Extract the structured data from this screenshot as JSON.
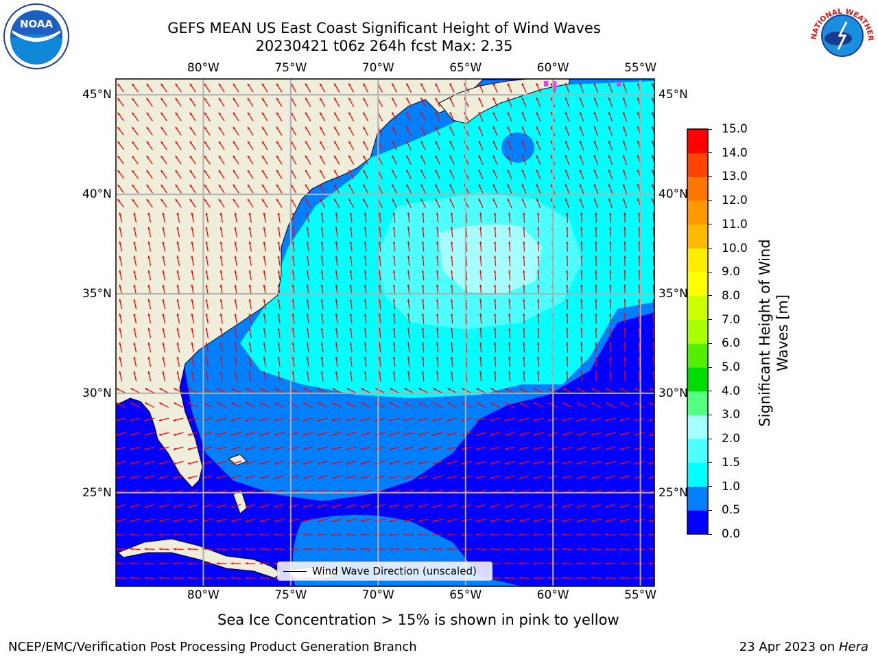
{
  "header": {
    "title_line1": "GEFS MEAN US East Coast Significant Height of Wind Waves",
    "title_line2": "20230421 t06z 264h fcst   Max: 2.35"
  },
  "logos": {
    "left": {
      "icon": "noaa-logo-icon",
      "text": "NOAA"
    },
    "right": {
      "icon": "nws-logo-icon",
      "text": "NATIONAL WEATHER SERVICE"
    }
  },
  "map": {
    "lon_labels": [
      "80°W",
      "75°W",
      "70°W",
      "65°W",
      "60°W",
      "55°W"
    ],
    "lon_values": [
      -80,
      -75,
      -70,
      -65,
      -60,
      -55
    ],
    "lat_labels": [
      "45°N",
      "40°N",
      "35°N",
      "30°N",
      "25°N"
    ],
    "lat_values": [
      45,
      40,
      35,
      30,
      25
    ],
    "lon_range": [
      -85,
      -54.2
    ],
    "lat_range": [
      20.3,
      45.8
    ],
    "colors": {
      "land": "#efeedb",
      "gridline": "#b0b0b0",
      "arrow": "#ff0000",
      "sea_ice": "#ff33ff"
    },
    "legend_label": "Wind Wave Direction (unscaled)"
  },
  "colorbar": {
    "label_line1": "Significant Height of Wind",
    "label_line2": "Waves [m]",
    "tick_labels": [
      "0.0",
      "0.5",
      "1.0",
      "1.5",
      "2.0",
      "3.0",
      "4.0",
      "5.0",
      "6.0",
      "7.0",
      "8.0",
      "9.0",
      "10.0",
      "11.0",
      "12.0",
      "13.0",
      "14.0",
      "15.0"
    ],
    "colors": [
      "#0000ff",
      "#0080ff",
      "#00ffff",
      "#4dffff",
      "#a6ffff",
      "#55ff80",
      "#00dd00",
      "#55ee00",
      "#aaff00",
      "#ccff00",
      "#ffff00",
      "#ffee00",
      "#ffbb00",
      "#ff9900",
      "#ff7700",
      "#ff4400",
      "#ff0000"
    ]
  },
  "footer": {
    "sea_ice_note": "Sea Ice Concentration > 15% is shown in pink to yellow",
    "branch": "NCEP/EMC/Verification Post Processing Product Generation Branch",
    "date": "23 Apr 2023 on ",
    "machine": "Hera"
  }
}
